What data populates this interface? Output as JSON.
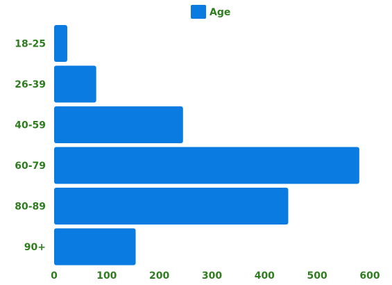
{
  "chart_data": {
    "type": "bar",
    "orientation": "horizontal",
    "categories": [
      "18-25",
      "26-39",
      "40-59",
      "60-79",
      "80-89",
      "90+"
    ],
    "series": [
      {
        "name": "Age",
        "values": [
          25,
          80,
          245,
          580,
          445,
          155
        ]
      }
    ],
    "xlim": [
      0,
      600
    ],
    "xticks": [
      0,
      100,
      200,
      300,
      400,
      500,
      600
    ],
    "xlabel": "",
    "ylabel": "",
    "grid": false,
    "legend": "top-center",
    "colors": {
      "bar": "#0a7be0",
      "label": "#2e7d1e"
    }
  }
}
